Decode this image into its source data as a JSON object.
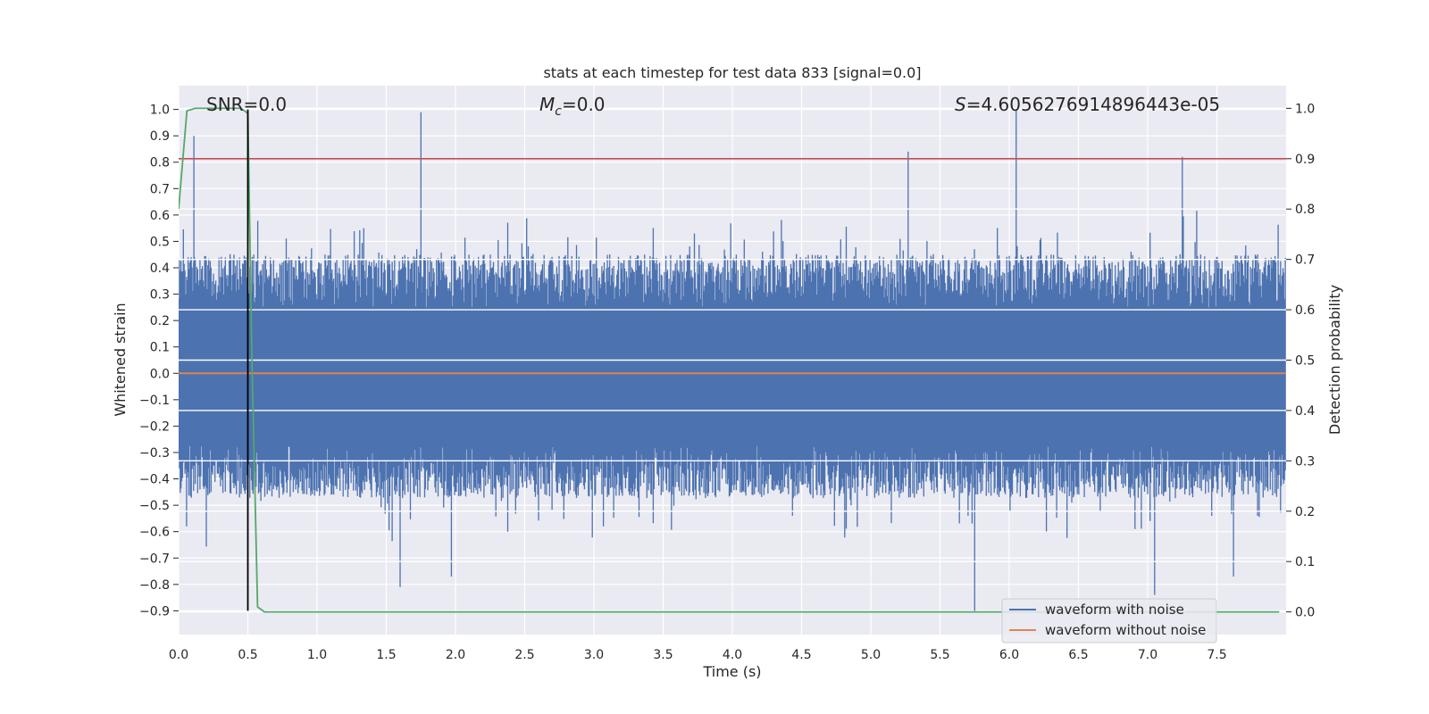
{
  "chart_data": {
    "type": "line",
    "title": "stats at each timestep for test data 833 [signal=0.0]",
    "xlabel": "Time (s)",
    "ylabel": "Whitened strain",
    "y2label": "Detection probability",
    "xlim": [
      0.0,
      8.0
    ],
    "ylim": [
      -0.99,
      1.09
    ],
    "y2lim": [
      -0.045,
      1.045
    ],
    "xticks": [
      "0.0",
      "0.5",
      "1.0",
      "1.5",
      "2.0",
      "2.5",
      "3.0",
      "3.5",
      "4.0",
      "4.5",
      "5.0",
      "5.5",
      "6.0",
      "6.5",
      "7.0",
      "7.5"
    ],
    "yticks": [
      "−0.9",
      "−0.8",
      "−0.7",
      "−0.6",
      "−0.5",
      "−0.4",
      "−0.3",
      "−0.2",
      "−0.1",
      "0.0",
      "0.1",
      "0.2",
      "0.3",
      "0.4",
      "0.5",
      "0.6",
      "0.7",
      "0.8",
      "0.9",
      "1.0"
    ],
    "y2ticks": [
      "0.0",
      "0.1",
      "0.2",
      "0.3",
      "0.4",
      "0.5",
      "0.6",
      "0.7",
      "0.8",
      "0.9",
      "1.0"
    ],
    "annotations": {
      "snr_prefix": "SNR=",
      "snr_value": "0.0",
      "mc_symbol": "M",
      "mc_sub": "c",
      "mc_value": "=0.0",
      "s_symbol": "S",
      "s_value": "=4.6056276914896443e-05"
    },
    "series": [
      {
        "name": "waveform with noise",
        "color": "#4c72b0",
        "noise_envelope": {
          "typical_peak": 0.45,
          "max": 1.0,
          "min": -0.9
        },
        "notable_peaks": [
          [
            0.11,
            0.9
          ],
          [
            1.75,
            0.99
          ],
          [
            5.27,
            0.84
          ],
          [
            6.05,
            1.0
          ],
          [
            7.25,
            0.82
          ]
        ],
        "notable_troughs": [
          [
            1.6,
            -0.81
          ],
          [
            1.97,
            -0.77
          ],
          [
            5.75,
            -0.9
          ],
          [
            7.05,
            -0.84
          ],
          [
            7.62,
            -0.77
          ]
        ]
      },
      {
        "name": "waveform without noise",
        "color": "#dd8452",
        "values": 0.0
      },
      {
        "color": "#55a868",
        "axis": "right",
        "points": [
          [
            0.0,
            0.8
          ],
          [
            0.06,
            0.995
          ],
          [
            0.12,
            1.0
          ],
          [
            0.45,
            1.0
          ],
          [
            0.5,
            0.99
          ],
          [
            0.53,
            0.5
          ],
          [
            0.57,
            0.01
          ],
          [
            0.62,
            0.0
          ],
          [
            7.95,
            0.0
          ]
        ]
      }
    ],
    "threshold": {
      "axis": "right",
      "value": 0.9,
      "color": "#c44e52"
    },
    "vertical_marker": {
      "x": 0.5,
      "y_from": -0.9,
      "y_to": 1.0,
      "color": "#000000"
    },
    "legend": {
      "position": "lower-right",
      "entries": [
        "waveform with noise",
        "waveform without noise"
      ]
    },
    "grid": true,
    "colors": {
      "background": "#eaeaf2",
      "grid": "#ffffff"
    }
  }
}
